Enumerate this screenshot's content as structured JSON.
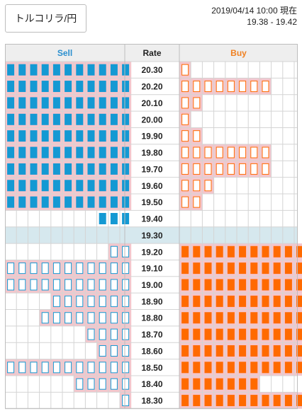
{
  "header": {
    "pair_label": "トルコリラ/円",
    "timestamp": "2019/04/14 10:00 現在",
    "range": "19.38 - 19.42"
  },
  "colors": {
    "sell": "#1499d3",
    "buy": "#ff6a00",
    "sell_text": "#2a8fcf",
    "buy_text": "#f08020",
    "highlight_row": "#f4c6cc",
    "current_row": "#d6e8ee",
    "header_bg": "#eeeeee",
    "grid": "#d4d4d4"
  },
  "chart_data": {
    "type": "table",
    "columns": [
      "Sell",
      "Rate",
      "Buy"
    ],
    "current_rate": "19.30",
    "rows": [
      {
        "rate": "20.30",
        "sell": 11,
        "buy": 1,
        "sell_filled": true,
        "buy_filled": false,
        "highlight": true
      },
      {
        "rate": "20.20",
        "sell": 11,
        "buy": 8,
        "sell_filled": true,
        "buy_filled": false,
        "highlight": true
      },
      {
        "rate": "20.10",
        "sell": 11,
        "buy": 2,
        "sell_filled": true,
        "buy_filled": false,
        "highlight": true
      },
      {
        "rate": "20.00",
        "sell": 11,
        "buy": 1,
        "sell_filled": true,
        "buy_filled": false,
        "highlight": true
      },
      {
        "rate": "19.90",
        "sell": 11,
        "buy": 2,
        "sell_filled": true,
        "buy_filled": false,
        "highlight": true
      },
      {
        "rate": "19.80",
        "sell": 11,
        "buy": 8,
        "sell_filled": true,
        "buy_filled": false,
        "highlight": true
      },
      {
        "rate": "19.70",
        "sell": 11,
        "buy": 8,
        "sell_filled": true,
        "buy_filled": false,
        "highlight": true
      },
      {
        "rate": "19.60",
        "sell": 11,
        "buy": 3,
        "sell_filled": true,
        "buy_filled": false,
        "highlight": true
      },
      {
        "rate": "19.50",
        "sell": 11,
        "buy": 2,
        "sell_filled": true,
        "buy_filled": false,
        "highlight": true
      },
      {
        "rate": "19.40",
        "sell": 3,
        "buy": 0,
        "sell_filled": true,
        "buy_filled": false,
        "highlight": false
      },
      {
        "rate": "19.30",
        "sell": 0,
        "buy": 0,
        "sell_filled": false,
        "buy_filled": false,
        "highlight": false,
        "current": true
      },
      {
        "rate": "19.20",
        "sell": 2,
        "buy": 11,
        "sell_filled": false,
        "buy_filled": true,
        "highlight": true
      },
      {
        "rate": "19.10",
        "sell": 11,
        "buy": 11,
        "sell_filled": false,
        "buy_filled": true,
        "highlight": true
      },
      {
        "rate": "19.00",
        "sell": 11,
        "buy": 11,
        "sell_filled": false,
        "buy_filled": true,
        "highlight": true
      },
      {
        "rate": "18.90",
        "sell": 7,
        "buy": 11,
        "sell_filled": false,
        "buy_filled": true,
        "highlight": true
      },
      {
        "rate": "18.80",
        "sell": 8,
        "buy": 11,
        "sell_filled": false,
        "buy_filled": true,
        "highlight": true
      },
      {
        "rate": "18.70",
        "sell": 4,
        "buy": 11,
        "sell_filled": false,
        "buy_filled": true,
        "highlight": true
      },
      {
        "rate": "18.60",
        "sell": 3,
        "buy": 11,
        "sell_filled": false,
        "buy_filled": true,
        "highlight": true
      },
      {
        "rate": "18.50",
        "sell": 11,
        "buy": 11,
        "sell_filled": false,
        "buy_filled": true,
        "highlight": true
      },
      {
        "rate": "18.40",
        "sell": 5,
        "buy": 7,
        "sell_filled": false,
        "buy_filled": true,
        "highlight": true
      },
      {
        "rate": "18.30",
        "sell": 1,
        "buy": 11,
        "sell_filled": false,
        "buy_filled": true,
        "highlight": true
      }
    ]
  }
}
